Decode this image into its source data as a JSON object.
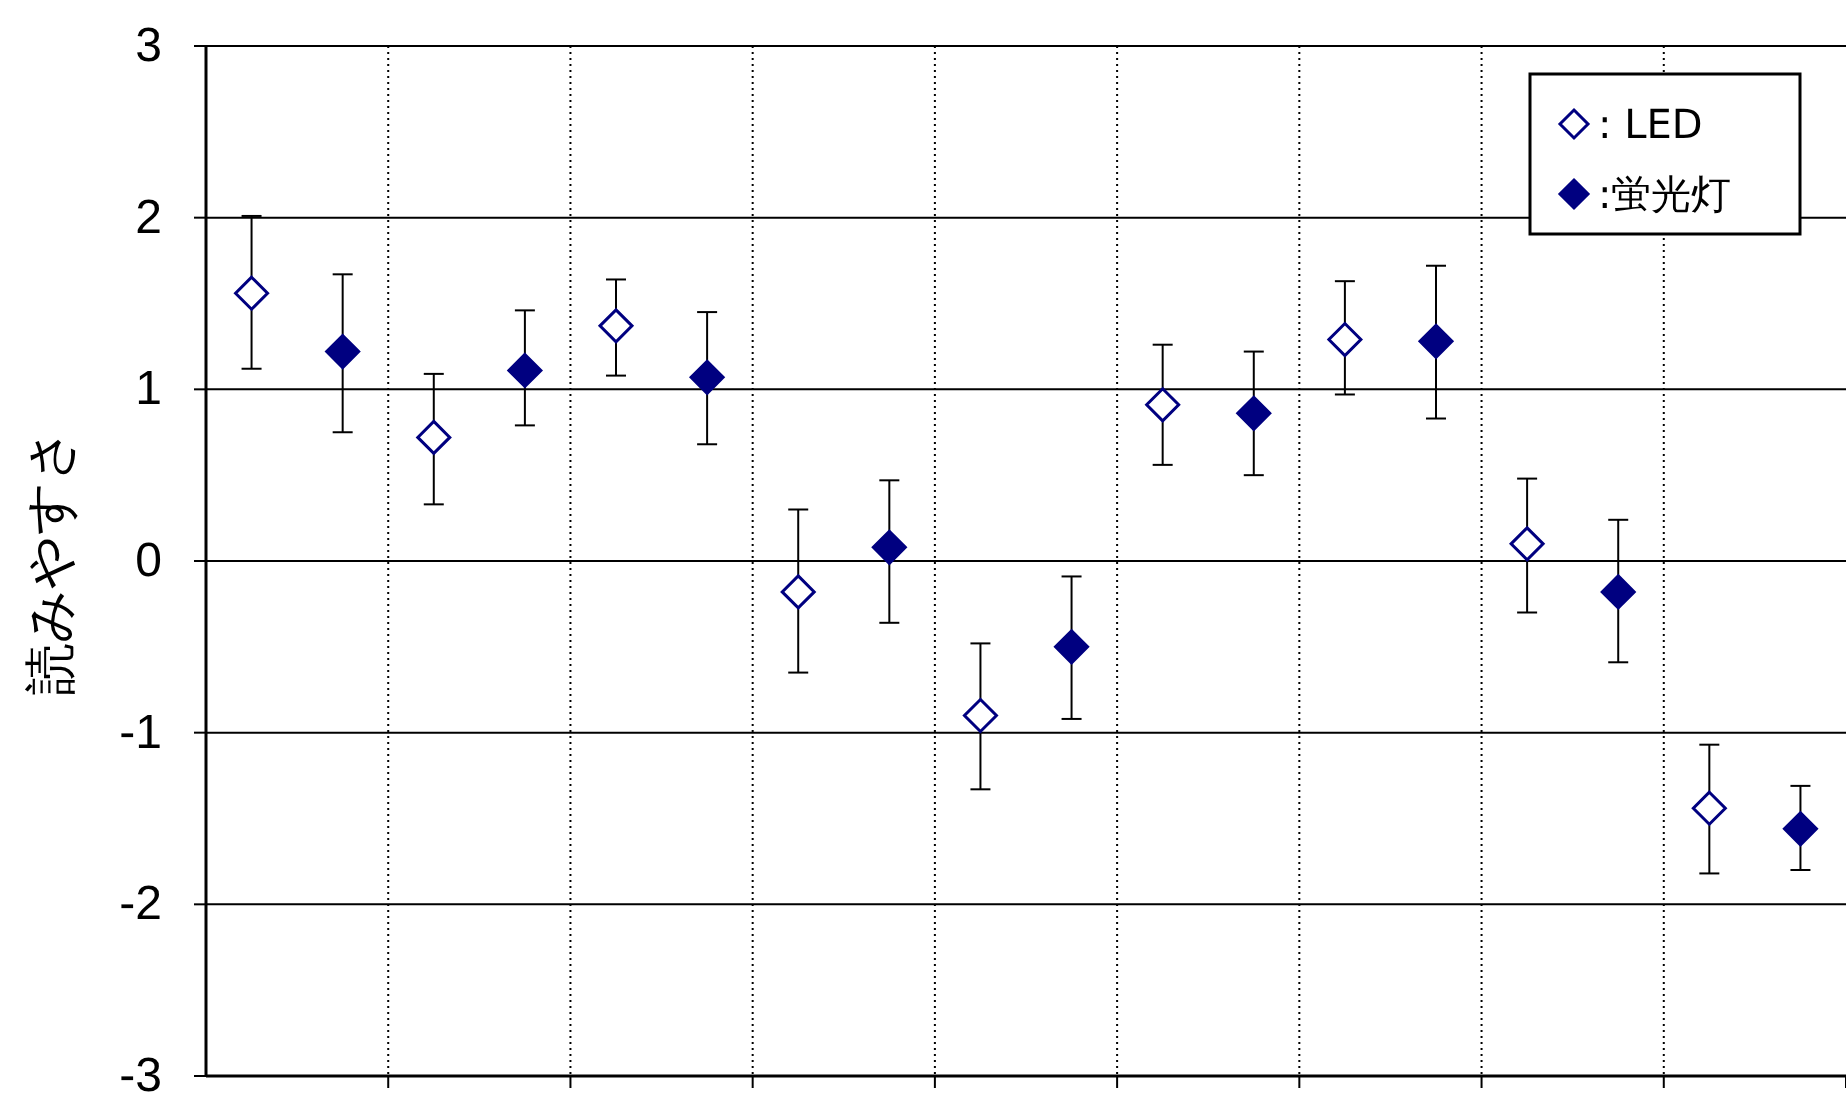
{
  "chart_data": {
    "type": "scatter",
    "ylabel": "読みやすさ",
    "categories": [
      null,
      null,
      null,
      null,
      null,
      null,
      null,
      null,
      null
    ],
    "ylim": [
      -3,
      3
    ],
    "yticks": [
      -3,
      -2,
      -1,
      0,
      1,
      2,
      3
    ],
    "grid": true,
    "legend": "top right",
    "marker": "diamond",
    "series": [
      {
        "name": ": LED",
        "color": "#000080",
        "values": [
          1.56,
          0.72,
          1.37,
          -0.18,
          -0.9,
          0.91,
          1.29,
          0.1,
          -1.44
        ],
        "errors": [
          [
            1.12,
            2.01
          ],
          [
            0.33,
            1.09
          ],
          [
            1.08,
            1.64
          ],
          [
            -0.65,
            0.3
          ],
          [
            -1.33,
            -0.48
          ],
          [
            0.56,
            1.26
          ],
          [
            0.97,
            1.63
          ],
          [
            -0.3,
            0.48
          ],
          [
            -1.82,
            -1.07
          ]
        ]
      },
      {
        "name": ":蛍光灯",
        "color": "#000080",
        "values": [
          1.22,
          1.11,
          1.07,
          0.08,
          -0.5,
          0.86,
          1.28,
          -0.18,
          -1.56
        ],
        "errors": [
          [
            0.75,
            1.67
          ],
          [
            0.79,
            1.46
          ],
          [
            0.68,
            1.45
          ],
          [
            -0.36,
            0.47
          ],
          [
            -0.92,
            -0.09
          ],
          [
            0.5,
            1.22
          ],
          [
            0.83,
            1.72
          ],
          [
            -0.59,
            0.24
          ],
          [
            -1.8,
            -1.31
          ]
        ]
      }
    ]
  }
}
